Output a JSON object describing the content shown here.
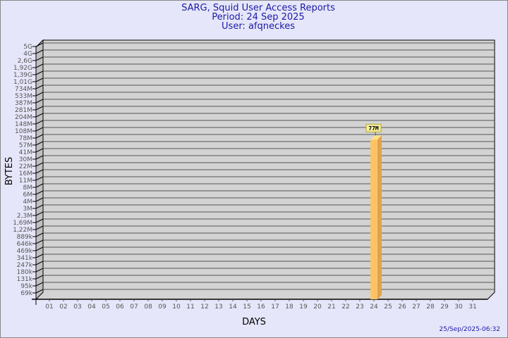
{
  "chart_data": {
    "type": "bar",
    "title": "SARG, Squid User Access Reports",
    "subtitle_lines": [
      "Period: 24 Sep 2025",
      "User: afqneckes"
    ],
    "xlabel": "DAYS",
    "ylabel": "BYTES",
    "y_scale": "log",
    "y_tick_labels": [
      "5G",
      "4G",
      "2,6G",
      "1,92G",
      "1,39G",
      "1,01G",
      "734M",
      "533M",
      "387M",
      "281M",
      "204M",
      "148M",
      "108M",
      "78M",
      "57M",
      "41M",
      "30M",
      "22M",
      "16M",
      "11M",
      "8M",
      "6M",
      "4M",
      "3M",
      "2,3M",
      "1,69M",
      "1,22M",
      "889k",
      "646k",
      "469k",
      "341k",
      "247k",
      "180k",
      "131k",
      "95k",
      "69k"
    ],
    "categories": [
      "01",
      "02",
      "03",
      "04",
      "05",
      "06",
      "07",
      "08",
      "09",
      "10",
      "11",
      "12",
      "13",
      "14",
      "15",
      "16",
      "17",
      "18",
      "19",
      "20",
      "21",
      "22",
      "23",
      "24",
      "25",
      "26",
      "27",
      "28",
      "29",
      "30",
      "31"
    ],
    "bars": [
      {
        "category": "24",
        "value": 77000000,
        "label": "77M"
      }
    ],
    "grid": true,
    "colors": {
      "bar": "#ffc266",
      "bar_side": "#e0a24a",
      "bar_top": "#ffe08a",
      "panel": "#d3d3d3",
      "wall": "#c0c0c0",
      "background": "#e6e6fa",
      "title": "#1a1aa6",
      "label_box": "#f5f0a0"
    }
  },
  "footer": {
    "timestamp": "25/Sep/2025-06:32"
  }
}
